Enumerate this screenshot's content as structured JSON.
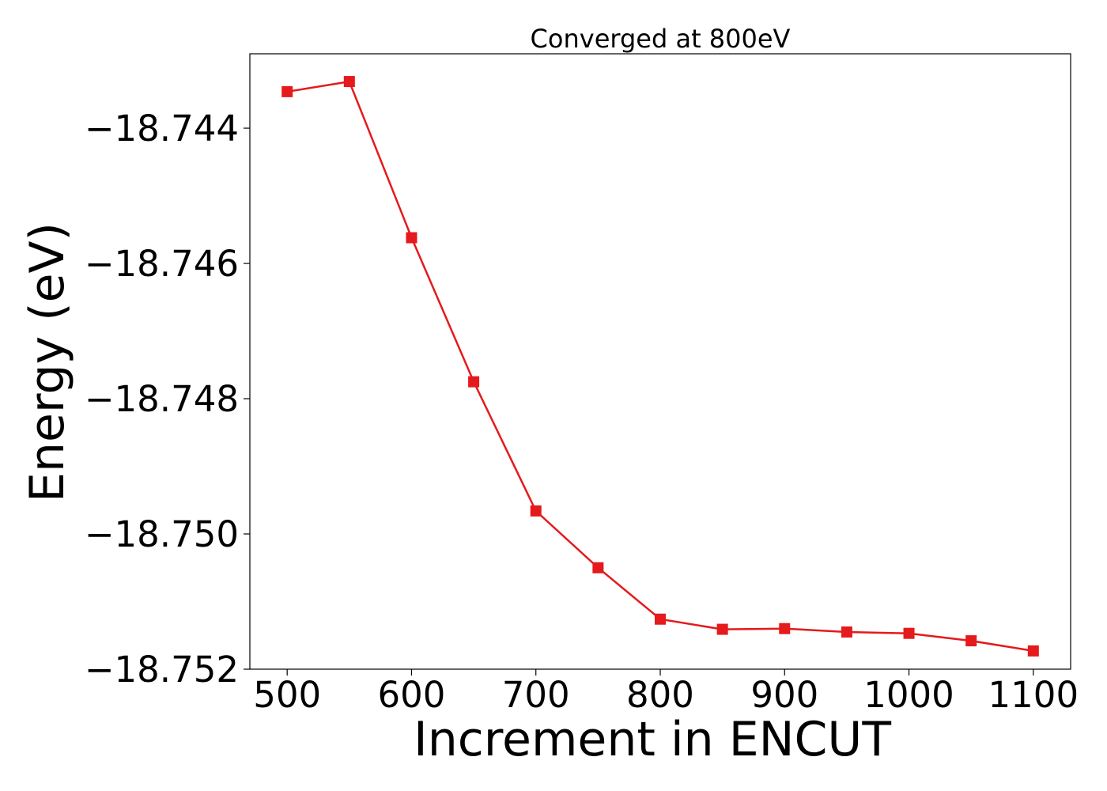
{
  "chart_data": {
    "type": "line",
    "title": "Converged at 800eV",
    "xlabel": "Increment in ENCUT",
    "ylabel": "Energy (eV)",
    "x": [
      500,
      550,
      600,
      650,
      700,
      750,
      800,
      850,
      900,
      950,
      1000,
      1050,
      1100
    ],
    "series": [
      {
        "values": [
          -18.74346,
          -18.74331,
          -18.74562,
          -18.74775,
          -18.74966,
          -18.7505,
          -18.75126,
          -18.75141,
          -18.7514,
          -18.75145,
          -18.75147,
          -18.75158,
          -18.75173
        ],
        "color": "#e41a1c",
        "marker": "square"
      }
    ],
    "xlim": [
      470,
      1130
    ],
    "ylim": [
      -18.752,
      -18.7429
    ],
    "xticks": [
      500,
      600,
      700,
      800,
      900,
      1000,
      1100
    ],
    "xtick_labels": [
      "500",
      "600",
      "700",
      "800",
      "900",
      "1000",
      "1100"
    ],
    "yticks": [
      -18.744,
      -18.746,
      -18.748,
      -18.75,
      -18.752
    ],
    "ytick_labels": [
      "−18.744",
      "−18.746",
      "−18.748",
      "−18.750",
      "−18.752"
    ],
    "grid": false,
    "legend": "none"
  }
}
